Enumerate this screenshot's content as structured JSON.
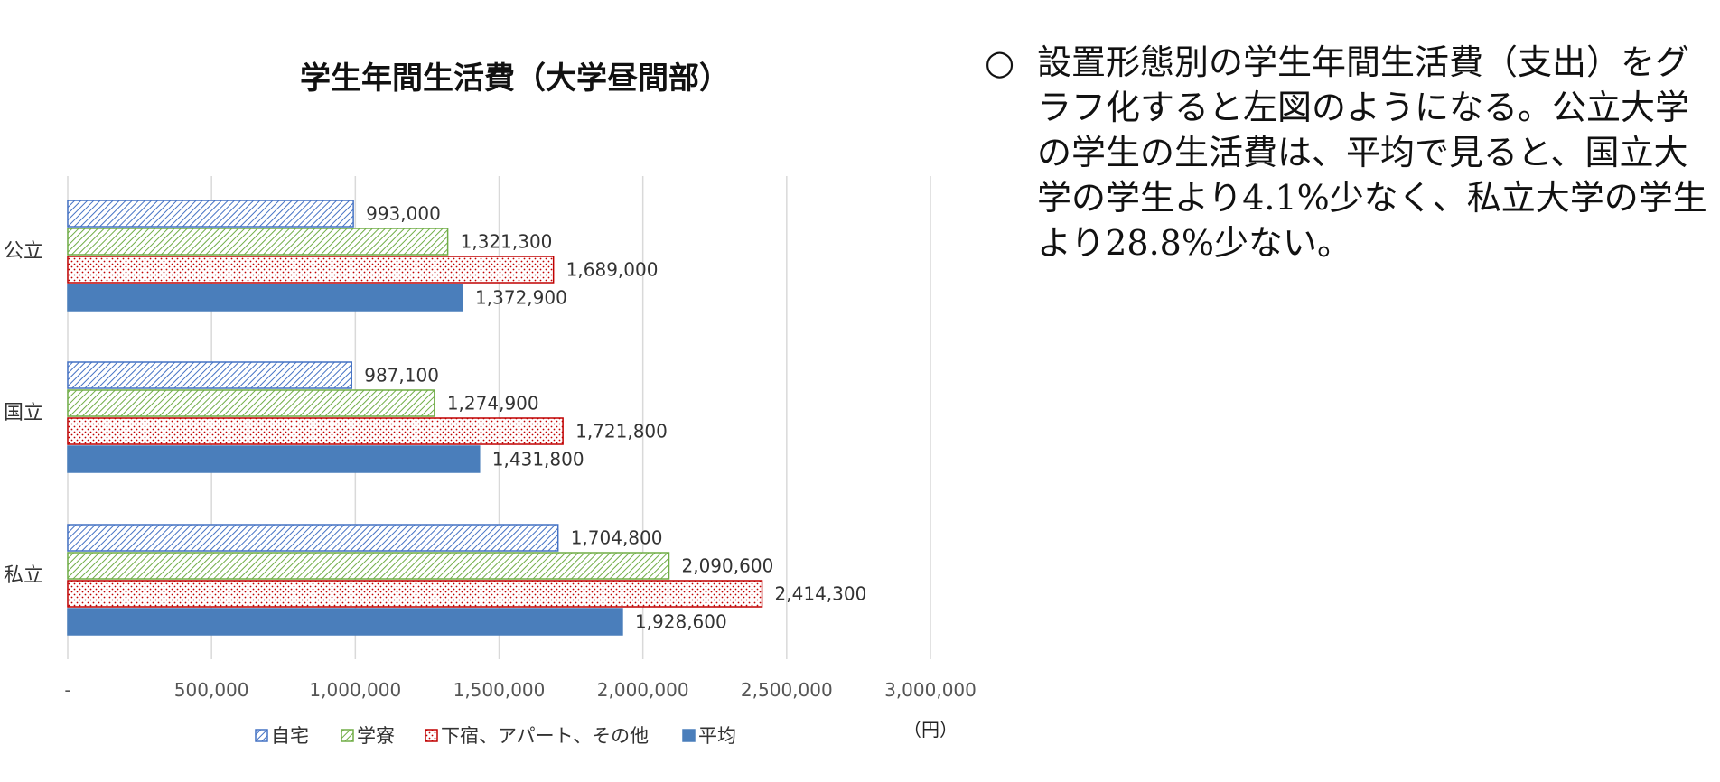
{
  "chart_data": {
    "type": "bar",
    "orientation": "horizontal",
    "title": "学生年間生活費（大学昼間部）",
    "categories": [
      "公立",
      "国立",
      "私立"
    ],
    "series": [
      {
        "name": "自宅",
        "values": [
          993000,
          987100,
          1704800
        ],
        "color": "#4472C4",
        "pattern": "diagonal-hatch"
      },
      {
        "name": "学寮",
        "values": [
          1321300,
          1274900,
          2090600
        ],
        "color": "#70AD47",
        "pattern": "diagonal-hatch"
      },
      {
        "name": "下宿、アパート、その他",
        "values": [
          1689000,
          1721800,
          2414300
        ],
        "color": "#D62728",
        "pattern": "dots"
      },
      {
        "name": "平均",
        "values": [
          1372900,
          1431800,
          1928600
        ],
        "color": "#4A7EBB",
        "pattern": "solid"
      }
    ],
    "value_labels": [
      [
        "993,000",
        "1,321,300",
        "1,689,000",
        "1,372,900"
      ],
      [
        "987,100",
        "1,274,900",
        "1,721,800",
        "1,431,800"
      ],
      [
        "1,704,800",
        "2,090,600",
        "2,414,300",
        "1,928,600"
      ]
    ],
    "xlim": [
      0,
      3000000
    ],
    "xticks": [
      0,
      500000,
      1000000,
      1500000,
      2000000,
      2500000,
      3000000
    ],
    "xtick_labels": [
      "-",
      "500,000",
      "1,000,000",
      "1,500,000",
      "2,000,000",
      "2,500,000",
      "3,000,000"
    ],
    "unit_label": "（円）",
    "grid": "vertical",
    "legend_position": "bottom"
  },
  "note": {
    "bullet": "○",
    "text": "設置形態別の学生年間生活費（支出）をグラフ化すると左図のようになる。公立大学の学生の生活費は、平均で見ると、国立大学の学生より4.1%少なく、私立大学の学生より28.8%少ない。"
  }
}
